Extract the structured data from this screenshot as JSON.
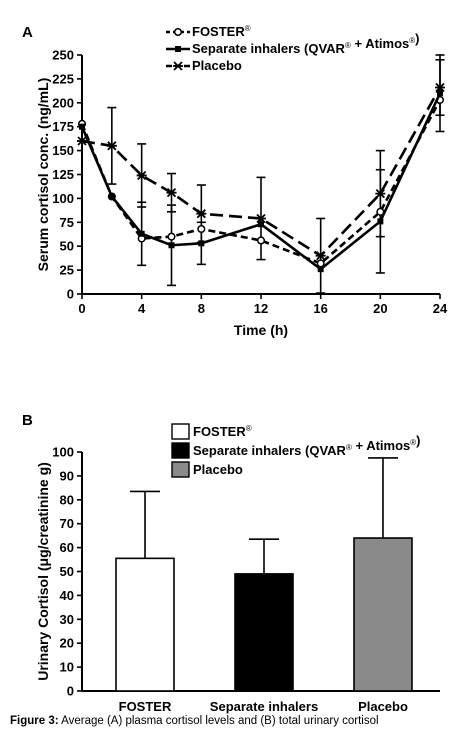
{
  "chart_data": [
    {
      "type": "line",
      "panel_label": "A",
      "xlabel": "Time (h)",
      "ylabel": "Serum cortisol conc. (ng/mL)",
      "xlim": [
        0,
        24
      ],
      "ylim": [
        0,
        250
      ],
      "xticks": [
        0,
        4,
        8,
        12,
        16,
        20,
        24
      ],
      "yticks": [
        0,
        25,
        50,
        75,
        100,
        125,
        150,
        175,
        200,
        225,
        250
      ],
      "grid": false,
      "legend_position": "top-left",
      "series": [
        {
          "name": "FOSTER",
          "marker": "open-circle",
          "dash": "short",
          "x": [
            0,
            2,
            4,
            6,
            8,
            12,
            16,
            20,
            24
          ],
          "y": [
            178,
            102,
            58,
            60,
            68,
            56,
            32,
            86,
            203
          ],
          "error": [
            null,
            null,
            null,
            null,
            null,
            null,
            null,
            null,
            null
          ]
        },
        {
          "name": "Separate inhalers (QVAR + Atimos)",
          "marker": "filled-square",
          "dash": "solid",
          "x": [
            0,
            2,
            4,
            6,
            8,
            12,
            16,
            20,
            24
          ],
          "y": [
            175,
            102,
            63,
            51,
            53,
            73,
            26,
            76,
            210
          ],
          "error": [
            null,
            null,
            33,
            42,
            22,
            null,
            null,
            54,
            40
          ]
        },
        {
          "name": "Placebo",
          "marker": "star",
          "dash": "long",
          "x": [
            0,
            2,
            4,
            6,
            8,
            12,
            16,
            20,
            24
          ],
          "y": [
            160,
            155,
            124,
            106,
            84,
            79,
            40,
            105,
            216
          ],
          "error": [
            null,
            40,
            33,
            20,
            30,
            43,
            39,
            45,
            29
          ]
        }
      ]
    },
    {
      "type": "bar",
      "panel_label": "B",
      "xlabel": "",
      "ylabel": "Urinary Cortisol (μg/creatinine g)",
      "ylim": [
        0,
        100
      ],
      "yticks": [
        0,
        10,
        20,
        30,
        40,
        50,
        60,
        70,
        80,
        90,
        100
      ],
      "grid": false,
      "legend_position": "top",
      "categories": [
        "FOSTER",
        "Separate inhalers",
        "Placebo"
      ],
      "values": [
        55.5,
        49,
        64
      ],
      "error": [
        28,
        14.5,
        33.5
      ],
      "legend": [
        "FOSTER",
        "Separate inhalers (QVAR + Atimos)",
        "Placebo"
      ],
      "colors": [
        "#ffffff",
        "#000000",
        "#8a8a8a"
      ]
    }
  ],
  "caption": {
    "label": "Figure 3:",
    "text": "Average (A) plasma cortisol levels and (B) total urinary cortisol"
  }
}
